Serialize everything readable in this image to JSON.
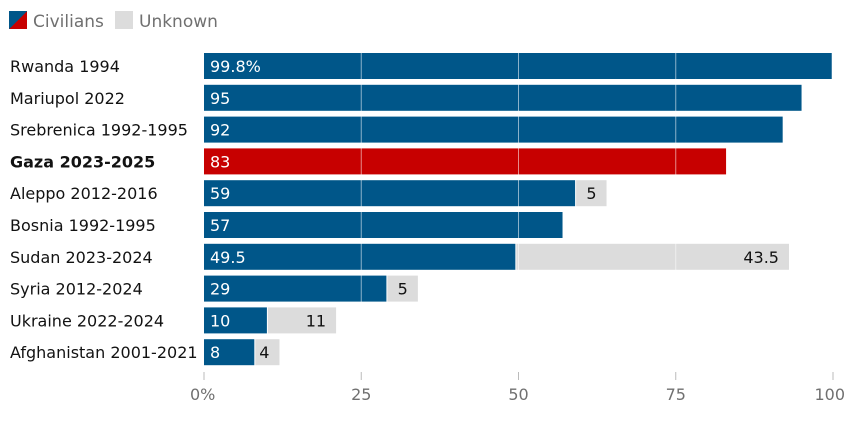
{
  "chart_data": {
    "type": "bar",
    "orientation": "horizontal",
    "stacked": true,
    "categories": [
      "Rwanda 1994",
      "Mariupol 2022",
      "Srebrenica 1992-1995",
      "Gaza 2023-2025",
      "Aleppo 2012-2016",
      "Bosnia 1992-1995",
      "Sudan 2023-2024",
      "Syria 2012-2024",
      "Ukraine 2022-2024",
      "Afghanistan 2001-2021"
    ],
    "highlight_category": "Gaza 2023-2025",
    "series": [
      {
        "name": "Civilians",
        "values": [
          99.8,
          95,
          92,
          83,
          59,
          57,
          49.5,
          29,
          10,
          8
        ],
        "labels": [
          "99.8%",
          "95",
          "92",
          "83",
          "59",
          "57",
          "49.5",
          "29",
          "10",
          "8"
        ]
      },
      {
        "name": "Unknown",
        "values": [
          0,
          0,
          0,
          0,
          5,
          0,
          43.5,
          5,
          11,
          4
        ],
        "labels": [
          "",
          "",
          "",
          "",
          "5",
          "",
          "43.5",
          "5",
          "11",
          "4"
        ]
      }
    ],
    "xlim": [
      0,
      100
    ],
    "xticks": [
      0,
      25,
      50,
      75,
      100
    ],
    "xtick_labels": [
      "0%",
      "25",
      "50",
      "75",
      "100"
    ],
    "grid": true,
    "legend_placement": "top-left",
    "colors": {
      "civilians": "#005689",
      "highlight": "#c70000",
      "unknown": "#dcdcdc",
      "axis_text": "#707070"
    }
  }
}
